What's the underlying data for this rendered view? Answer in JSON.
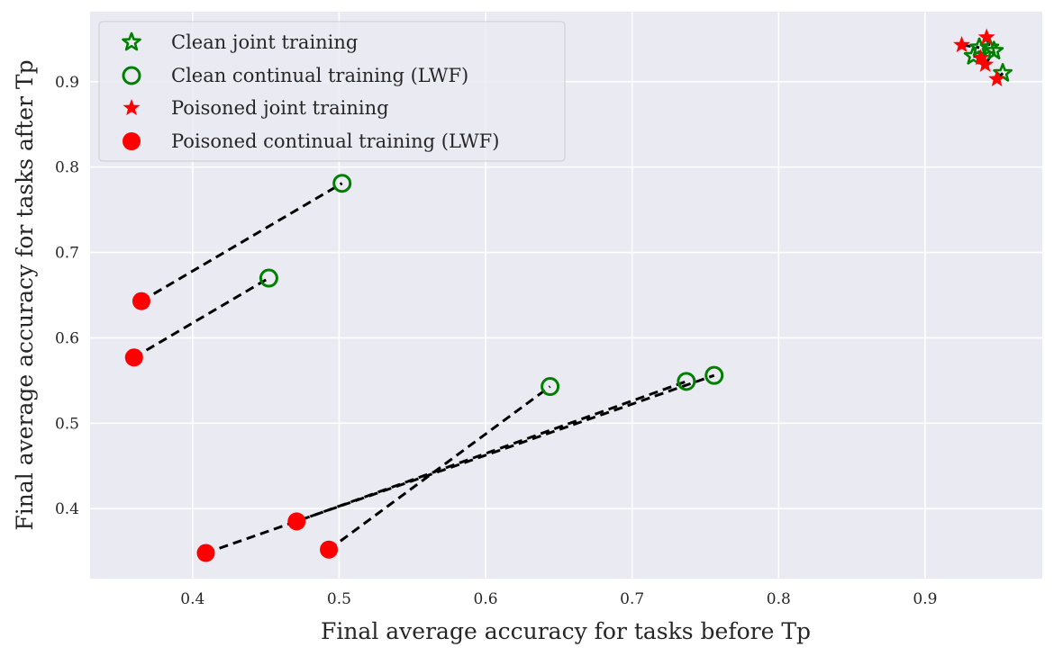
{
  "chart_data": {
    "type": "scatter",
    "title": "",
    "xlabel": "Final average accuracy for tasks before Tp",
    "ylabel": "Final average accuracy for tasks after Tp",
    "xlim": [
      0.33,
      0.98
    ],
    "ylim": [
      0.318,
      0.982
    ],
    "xticks": [
      0.4,
      0.5,
      0.6,
      0.7,
      0.8,
      0.9
    ],
    "yticks": [
      0.4,
      0.5,
      0.6,
      0.7,
      0.8,
      0.9
    ],
    "grid": true,
    "legend_position": "top-left",
    "series": [
      {
        "name": "Clean joint training",
        "marker": "star-hollow",
        "color": "#008000",
        "points": [
          {
            "x": 0.933,
            "y": 0.93
          },
          {
            "x": 0.937,
            "y": 0.94
          },
          {
            "x": 0.944,
            "y": 0.94
          },
          {
            "x": 0.947,
            "y": 0.936
          },
          {
            "x": 0.953,
            "y": 0.91
          }
        ]
      },
      {
        "name": "Clean continual training (LWF)",
        "marker": "circle-hollow",
        "color": "#008000",
        "points": [
          {
            "x": 0.502,
            "y": 0.781
          },
          {
            "x": 0.452,
            "y": 0.67
          },
          {
            "x": 0.644,
            "y": 0.543
          },
          {
            "x": 0.737,
            "y": 0.549
          },
          {
            "x": 0.756,
            "y": 0.556
          }
        ]
      },
      {
        "name": "Poisoned joint training",
        "marker": "star-filled",
        "color": "#ff0000",
        "points": [
          {
            "x": 0.925,
            "y": 0.943
          },
          {
            "x": 0.942,
            "y": 0.952
          },
          {
            "x": 0.941,
            "y": 0.92
          },
          {
            "x": 0.938,
            "y": 0.928
          },
          {
            "x": 0.949,
            "y": 0.903
          }
        ]
      },
      {
        "name": "Poisoned continual training (LWF)",
        "marker": "circle-filled",
        "color": "#ff0000",
        "points": [
          {
            "x": 0.365,
            "y": 0.643
          },
          {
            "x": 0.36,
            "y": 0.577
          },
          {
            "x": 0.493,
            "y": 0.352
          },
          {
            "x": 0.471,
            "y": 0.385
          },
          {
            "x": 0.409,
            "y": 0.348
          }
        ]
      }
    ],
    "dashed_links": [
      {
        "from": [
          0.365,
          0.643
        ],
        "to": [
          0.502,
          0.781
        ]
      },
      {
        "from": [
          0.36,
          0.577
        ],
        "to": [
          0.452,
          0.67
        ]
      },
      {
        "from": [
          0.493,
          0.352
        ],
        "to": [
          0.644,
          0.543
        ]
      },
      {
        "from": [
          0.471,
          0.385
        ],
        "to": [
          0.737,
          0.549
        ]
      },
      {
        "from": [
          0.409,
          0.348
        ],
        "to": [
          0.756,
          0.556
        ]
      },
      {
        "from": [
          0.925,
          0.943
        ],
        "to": [
          0.937,
          0.94
        ]
      },
      {
        "from": [
          0.942,
          0.952
        ],
        "to": [
          0.944,
          0.94
        ]
      },
      {
        "from": [
          0.938,
          0.928
        ],
        "to": [
          0.933,
          0.93
        ]
      },
      {
        "from": [
          0.941,
          0.92
        ],
        "to": [
          0.947,
          0.936
        ]
      },
      {
        "from": [
          0.949,
          0.903
        ],
        "to": [
          0.953,
          0.91
        ]
      }
    ]
  }
}
